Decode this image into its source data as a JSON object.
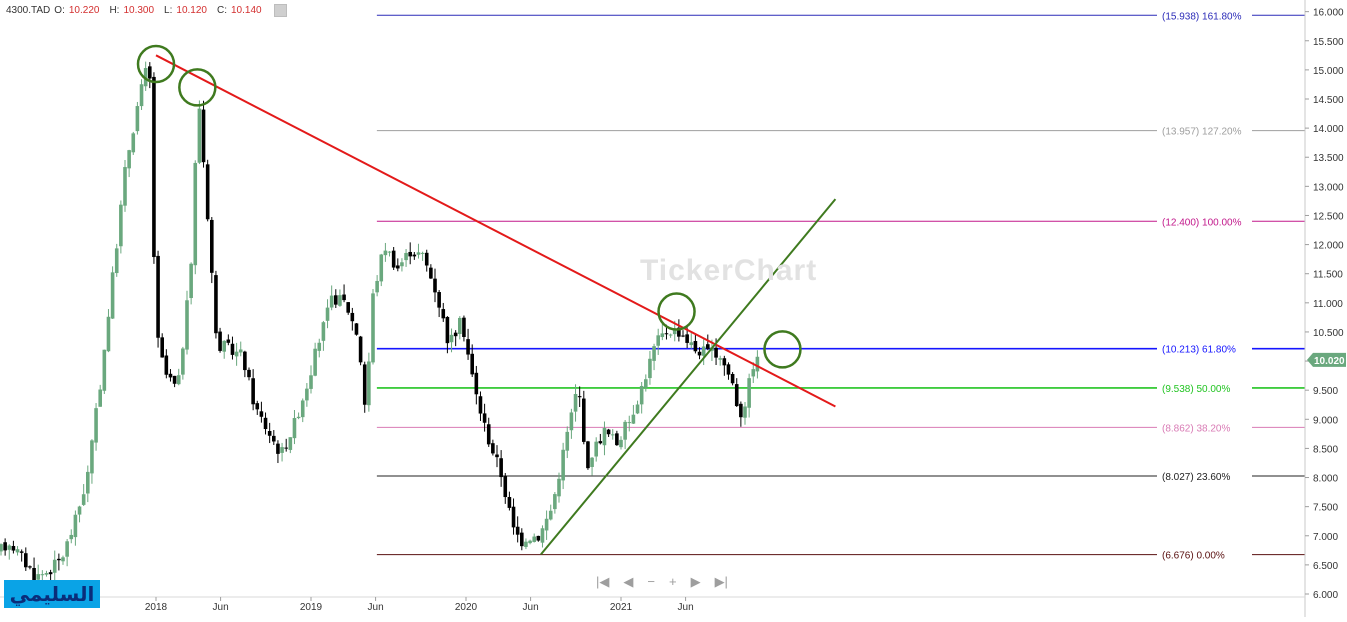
{
  "header": {
    "symbol": "4300.TAD",
    "open_label": "O:",
    "open": "10.220",
    "high_label": "H:",
    "high": "10.300",
    "low_label": "L:",
    "low": "10.120",
    "close_label": "C:",
    "close": "10.140"
  },
  "watermark": "TickerChart",
  "badge": "السليمي",
  "nav": {
    "first": "|◀",
    "prev": "◀",
    "zoom_out": "−",
    "zoom_in": "+",
    "next": "▶",
    "last": "▶|"
  },
  "colors": {
    "up": "#6aa87e",
    "down": "#000000",
    "downtrend": "#e31a1a",
    "uptrend": "#3f7a1f",
    "fib_161": "#2b2bb8",
    "fib_127": "#9e9e9e",
    "fib_100": "#c2188b",
    "fib_618": "#1515ff",
    "fib_50": "#22c422",
    "fib_382": "#d97bb5",
    "fib_236": "#222222",
    "fib_0": "#5a1010",
    "last_price_bg": "#6aa87e"
  },
  "chart_data": {
    "type": "candlestick",
    "title": "",
    "xlabel": "",
    "ylabel": "",
    "ylim": [
      6.0,
      16.2
    ],
    "y_ticks": [
      "6.000",
      "6.500",
      "7.000",
      "7.500",
      "8.000",
      "8.500",
      "9.000",
      "9.500",
      "10.000",
      "10.500",
      "11.000",
      "11.500",
      "12.000",
      "12.500",
      "13.000",
      "13.500",
      "14.000",
      "14.500",
      "15.000",
      "15.500",
      "16.000"
    ],
    "x_labels": [
      {
        "label": "2018",
        "month": 12
      },
      {
        "label": "Jun",
        "month": 17
      },
      {
        "label": "2019",
        "month": 24
      },
      {
        "label": "Jun",
        "month": 29
      },
      {
        "label": "2020",
        "month": 36
      },
      {
        "label": "Jun",
        "month": 41
      },
      {
        "label": "2021",
        "month": 48
      },
      {
        "label": "Jun",
        "month": 53
      }
    ],
    "last_price": "10.020",
    "fibonacci": [
      {
        "price": 15.938,
        "label": "(15.938) 161.80%",
        "color_key": "fib_161"
      },
      {
        "price": 13.957,
        "label": "(13.957) 127.20%",
        "color_key": "fib_127"
      },
      {
        "price": 12.4,
        "label": "(12.400) 100.00%",
        "color_key": "fib_100"
      },
      {
        "price": 10.213,
        "label": "(10.213) 61.80%",
        "color_key": "fib_618"
      },
      {
        "price": 9.538,
        "label": "(9.538) 50.00%",
        "color_key": "fib_50"
      },
      {
        "price": 8.862,
        "label": "(8.862) 38.20%",
        "color_key": "fib_382"
      },
      {
        "price": 8.027,
        "label": "(8.027) 23.60%",
        "color_key": "fib_236"
      },
      {
        "price": 6.676,
        "label": "(6.676) 0.00%",
        "color_key": "fib_0"
      }
    ],
    "fib_start_month": 29.1,
    "trendlines": [
      {
        "name": "downtrend",
        "color_key": "downtrend",
        "from": [
          12.0,
          15.25
        ],
        "to": [
          64.6,
          9.22
        ]
      },
      {
        "name": "uptrend",
        "color_key": "uptrend",
        "from": [
          41.8,
          6.68
        ],
        "to": [
          64.6,
          12.78
        ]
      }
    ],
    "circles": [
      {
        "month": 12.0,
        "price": 15.1
      },
      {
        "month": 15.2,
        "price": 14.7
      },
      {
        "month": 52.3,
        "price": 10.85
      },
      {
        "month": 60.5,
        "price": 10.2
      }
    ],
    "anchors": [
      [
        0,
        6.7
      ],
      [
        1,
        6.9
      ],
      [
        2,
        6.6
      ],
      [
        3,
        6.3
      ],
      [
        4,
        6.4
      ],
      [
        5,
        6.6
      ],
      [
        6,
        7.2
      ],
      [
        7,
        8.0
      ],
      [
        8,
        9.6
      ],
      [
        9,
        11.5
      ],
      [
        10,
        13.4
      ],
      [
        11,
        14.5
      ],
      [
        11.8,
        15.2
      ],
      [
        12.3,
        10.5
      ],
      [
        13,
        9.8
      ],
      [
        14,
        9.5
      ],
      [
        15,
        11.5
      ],
      [
        15.6,
        14.6
      ],
      [
        16.5,
        12.0
      ],
      [
        17,
        10.3
      ],
      [
        18,
        10.2
      ],
      [
        19,
        10.1
      ],
      [
        20,
        9.2
      ],
      [
        21,
        8.8
      ],
      [
        22,
        8.4
      ],
      [
        23,
        8.9
      ],
      [
        24,
        9.6
      ],
      [
        25,
        10.4
      ],
      [
        26,
        11.1
      ],
      [
        27,
        11.0
      ],
      [
        28,
        10.4
      ],
      [
        28.6,
        9.0
      ],
      [
        29,
        11.0
      ],
      [
        30,
        12.0
      ],
      [
        31,
        11.6
      ],
      [
        32,
        11.9
      ],
      [
        33,
        11.8
      ],
      [
        34,
        11.2
      ],
      [
        35,
        10.3
      ],
      [
        36,
        10.7
      ],
      [
        37,
        9.5
      ],
      [
        38,
        8.7
      ],
      [
        39,
        8.1
      ],
      [
        40,
        7.1
      ],
      [
        40.7,
        6.9
      ],
      [
        41,
        7.0
      ],
      [
        42,
        7.0
      ],
      [
        43,
        7.5
      ],
      [
        44,
        8.6
      ],
      [
        45,
        9.6
      ],
      [
        45.8,
        8.0
      ],
      [
        46,
        8.4
      ],
      [
        47,
        8.8
      ],
      [
        48,
        8.6
      ],
      [
        49,
        9.0
      ],
      [
        50,
        9.6
      ],
      [
        51,
        10.3
      ],
      [
        52,
        10.55
      ],
      [
        53,
        10.5
      ],
      [
        54,
        10.2
      ],
      [
        55,
        10.15
      ],
      [
        56,
        10.1
      ],
      [
        57,
        9.6
      ],
      [
        57.5,
        9.05
      ],
      [
        58,
        9.35
      ],
      [
        58.6,
        10.0
      ]
    ]
  }
}
